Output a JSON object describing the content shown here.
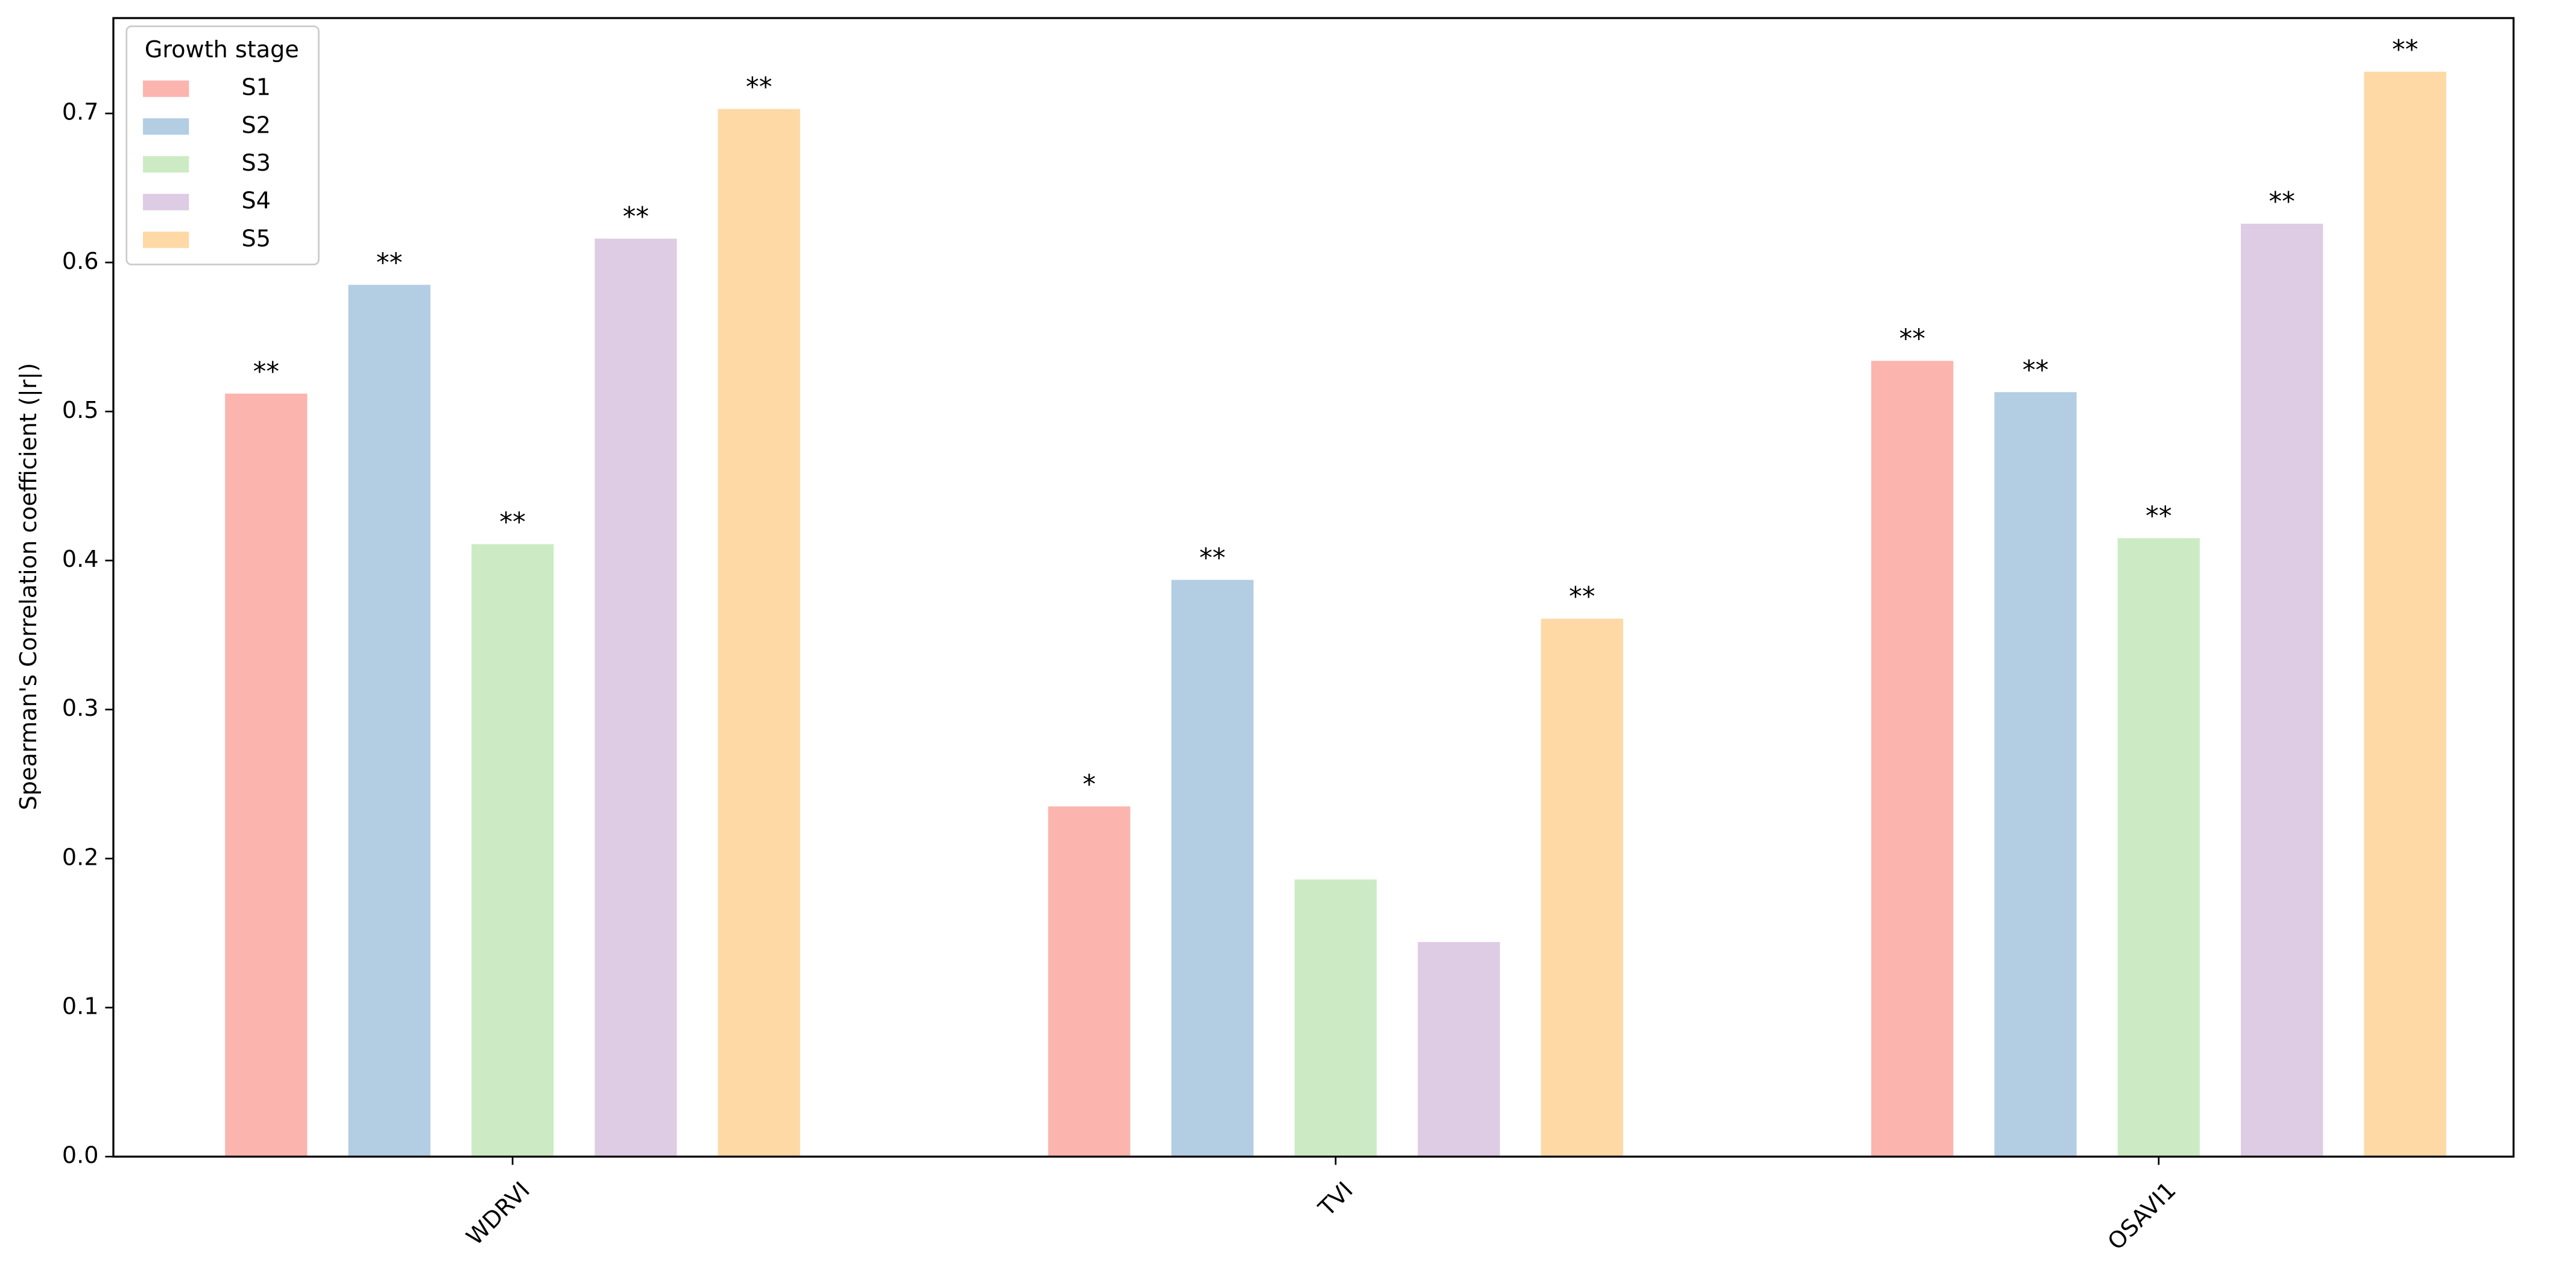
{
  "chart_data": {
    "type": "bar",
    "y_label": "Spearman's Correlation coefficient (|r|)",
    "categories": [
      "WDRVI",
      "TVI",
      "OSAVI1"
    ],
    "legend_title": "Growth stage",
    "legend_position": "upper left",
    "series": [
      {
        "name": "S1",
        "color": "#fbb4ae",
        "values": [
          0.512,
          0.235,
          0.534
        ],
        "annotations": [
          "**",
          "*",
          "**"
        ]
      },
      {
        "name": "S2",
        "color": "#b3cde3",
        "values": [
          0.585,
          0.387,
          0.513
        ],
        "annotations": [
          "**",
          "**",
          "**"
        ]
      },
      {
        "name": "S3",
        "color": "#ccebc5",
        "values": [
          0.411,
          0.186,
          0.415
        ],
        "annotations": [
          "**",
          null,
          "**"
        ]
      },
      {
        "name": "S4",
        "color": "#decbe4",
        "values": [
          0.616,
          0.144,
          0.626
        ],
        "annotations": [
          "**",
          null,
          "**"
        ]
      },
      {
        "name": "S5",
        "color": "#fed9a6",
        "values": [
          0.703,
          0.361,
          0.728
        ],
        "annotations": [
          "**",
          "**",
          "**"
        ]
      }
    ],
    "ylim": [
      0,
      0.764
    ],
    "yticks": [
      {
        "value": 0,
        "label": "0.0"
      },
      0.1,
      0.2,
      0.3,
      0.4,
      0.5,
      0.6,
      0.7
    ],
    "grid": false
  }
}
